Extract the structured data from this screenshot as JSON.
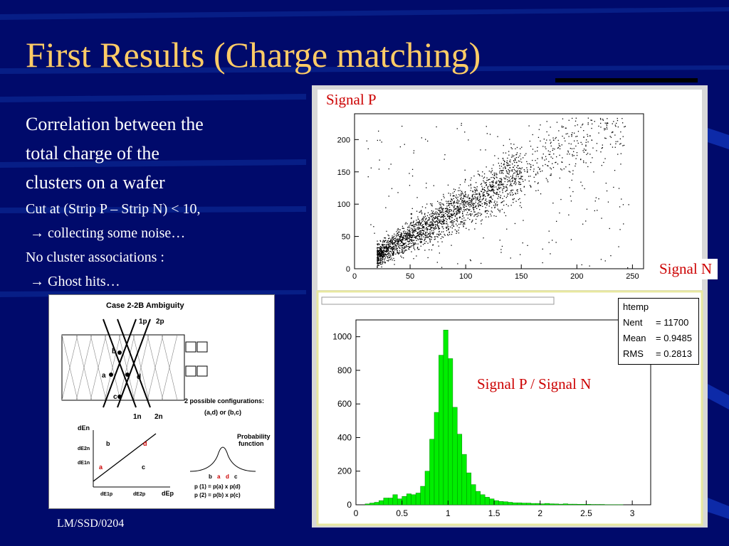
{
  "slide": {
    "title": "First Results (Charge matching)",
    "lines": [
      "Correlation between the",
      "total charge of the",
      "clusters on a wafer",
      "Cut at (Strip P – Strip N) < 10,",
      "→ collecting some noise…",
      "No cluster associations :",
      "→ Ghost hits…"
    ],
    "footer": "LM/SSD/0204",
    "colors": {
      "background": "#000a6b",
      "title": "#ffcc66",
      "label_text": "#cc0000",
      "histogram_fill": "#00ee00"
    }
  },
  "diagram": {
    "title": "Case 2-2B Ambiguity",
    "strip_labels": [
      "1p",
      "2p",
      "1n",
      "2n"
    ],
    "points": [
      "a",
      "b",
      "c",
      "d"
    ],
    "configs_text": "2 possible configurations:",
    "configs": "(a,d) or (b,c)",
    "axis_y": "dEn",
    "axis_x": "dEp",
    "y_ticks": [
      "dE2n",
      "dE1n"
    ],
    "x_ticks": [
      "dE1p",
      "dE2p"
    ],
    "prob_title": "Probability",
    "prob_title2": "function",
    "prob_labels": [
      "b",
      "a",
      "d",
      "c"
    ],
    "formula1": "p (1) = p(a) x p(d)",
    "formula2": "p (2) = p(b) x p(c)"
  },
  "labels": {
    "signal_p": "Signal P",
    "signal_n": "Signal N",
    "ratio": "Signal P / Signal N"
  },
  "stats": {
    "name": "htemp",
    "rows": [
      {
        "key": "Nent",
        "val": "= 11700"
      },
      {
        "key": "Mean",
        "val": "= 0.9485"
      },
      {
        "key": "RMS",
        "val": "= 0.2813"
      }
    ]
  },
  "chart_data": [
    {
      "type": "scatter",
      "title": "",
      "xlabel": "Signal N",
      "ylabel": "Signal P",
      "xlim": [
        0,
        260
      ],
      "ylim": [
        0,
        240
      ],
      "x_ticks": [
        0,
        50,
        100,
        150,
        200,
        250
      ],
      "y_ticks": [
        0,
        50,
        100,
        150,
        200
      ],
      "trend": {
        "slope": 0.98,
        "intercept": 2,
        "spread_sigma": 12
      },
      "approx_points": 11700
    },
    {
      "type": "bar",
      "title": "",
      "xlabel": "Signal P / Signal N",
      "ylabel": "",
      "xlim": [
        0,
        3.2
      ],
      "ylim": [
        0,
        1100
      ],
      "x_ticks": [
        "0",
        "0.5",
        "1",
        "1.5",
        "2",
        "2.5",
        "3"
      ],
      "y_ticks": [
        0,
        200,
        400,
        600,
        800,
        1000
      ],
      "bin_width": 0.05,
      "bin_centers": [
        0.025,
        0.075,
        0.125,
        0.175,
        0.225,
        0.275,
        0.325,
        0.375,
        0.425,
        0.475,
        0.525,
        0.575,
        0.625,
        0.675,
        0.725,
        0.775,
        0.825,
        0.875,
        0.925,
        0.975,
        1.025,
        1.075,
        1.125,
        1.175,
        1.225,
        1.275,
        1.325,
        1.375,
        1.425,
        1.475,
        1.525,
        1.575,
        1.625,
        1.675,
        1.725,
        1.775,
        1.825,
        1.875,
        1.925,
        1.975,
        2.025,
        2.075,
        2.125,
        2.175,
        2.225,
        2.275,
        2.325,
        2.375,
        2.425,
        2.475,
        2.525,
        2.575,
        2.625,
        2.675,
        2.725,
        2.775,
        2.825,
        2.875,
        2.925,
        2.975
      ],
      "values": [
        0,
        0,
        5,
        10,
        15,
        25,
        40,
        40,
        60,
        35,
        50,
        65,
        60,
        70,
        110,
        200,
        390,
        550,
        890,
        1040,
        870,
        580,
        420,
        300,
        190,
        120,
        80,
        60,
        45,
        35,
        25,
        20,
        18,
        15,
        12,
        12,
        10,
        10,
        8,
        8,
        6,
        8,
        6,
        5,
        4,
        6,
        4,
        4,
        3,
        3,
        3,
        2,
        2,
        2,
        1,
        1,
        1,
        1,
        0,
        0
      ]
    }
  ]
}
